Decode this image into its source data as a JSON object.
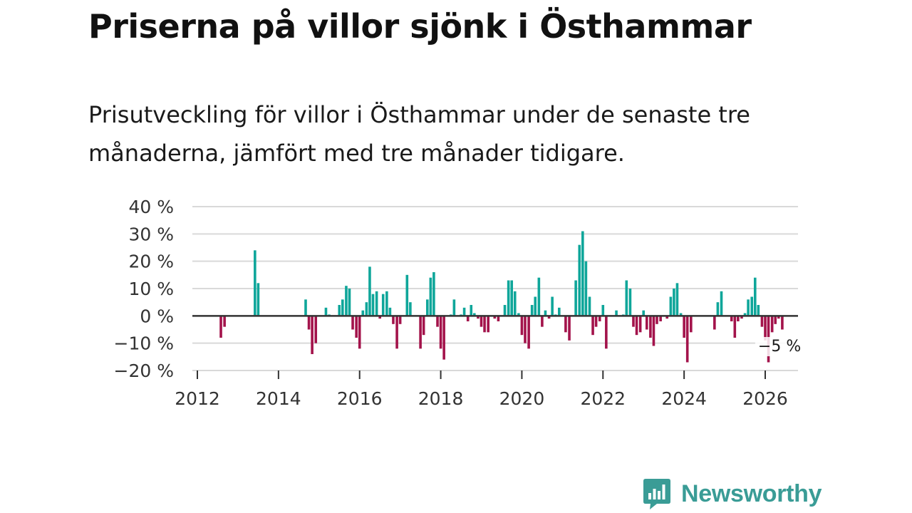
{
  "title": "Priserna på villor sjönk i Östhammar",
  "subtitle": "Prisutveckling för villor i Östhammar under de senaste tre månaderna, jämfört med tre månader tidigare.",
  "brand": {
    "name": "Newsworthy",
    "icon": "newsworthy-logo-icon",
    "color": "#3a9c96"
  },
  "colors": {
    "positive": "#0fa69a",
    "negative": "#a3134b",
    "grid": "#d9d9d9",
    "zero": "#333333"
  },
  "chart_data": {
    "type": "bar",
    "ylabel": "",
    "xlabel": "",
    "ylim": [
      -20,
      40
    ],
    "xlim": [
      2012,
      2026.8
    ],
    "y_ticks": [
      40,
      30,
      20,
      10,
      0,
      -10,
      -20
    ],
    "y_tick_labels": [
      "40 %",
      "30 %",
      "20 %",
      "10 %",
      "0 %",
      "−10 %",
      "−20 %"
    ],
    "x_ticks": [
      2012,
      2014,
      2016,
      2018,
      2020,
      2022,
      2024,
      2026
    ],
    "x_tick_labels": [
      "2012",
      "2014",
      "2016",
      "2018",
      "2020",
      "2022",
      "2024",
      "2026"
    ],
    "last_label": "−5 %",
    "series": [
      {
        "name": "Prisutveckling",
        "points": [
          {
            "x": 2012.58,
            "y": -8
          },
          {
            "x": 2012.67,
            "y": -4
          },
          {
            "x": 2013.42,
            "y": 24
          },
          {
            "x": 2013.5,
            "y": 12
          },
          {
            "x": 2014.67,
            "y": 6
          },
          {
            "x": 2014.75,
            "y": -5
          },
          {
            "x": 2014.83,
            "y": -14
          },
          {
            "x": 2014.92,
            "y": -10
          },
          {
            "x": 2015.17,
            "y": 3
          },
          {
            "x": 2015.25,
            "y": 0.5
          },
          {
            "x": 2015.5,
            "y": 4
          },
          {
            "x": 2015.58,
            "y": 6
          },
          {
            "x": 2015.67,
            "y": 11
          },
          {
            "x": 2015.75,
            "y": 10
          },
          {
            "x": 2015.83,
            "y": -5
          },
          {
            "x": 2015.92,
            "y": -8
          },
          {
            "x": 2016.0,
            "y": -12
          },
          {
            "x": 2016.08,
            "y": 2
          },
          {
            "x": 2016.17,
            "y": 5
          },
          {
            "x": 2016.25,
            "y": 18
          },
          {
            "x": 2016.33,
            "y": 8
          },
          {
            "x": 2016.42,
            "y": 9
          },
          {
            "x": 2016.5,
            "y": -1
          },
          {
            "x": 2016.58,
            "y": 8
          },
          {
            "x": 2016.67,
            "y": 9
          },
          {
            "x": 2016.75,
            "y": 3
          },
          {
            "x": 2016.83,
            "y": -3
          },
          {
            "x": 2016.92,
            "y": -12
          },
          {
            "x": 2017.0,
            "y": -3
          },
          {
            "x": 2017.17,
            "y": 15
          },
          {
            "x": 2017.25,
            "y": 5
          },
          {
            "x": 2017.5,
            "y": -12
          },
          {
            "x": 2017.58,
            "y": -7
          },
          {
            "x": 2017.67,
            "y": 6
          },
          {
            "x": 2017.75,
            "y": 14
          },
          {
            "x": 2017.83,
            "y": 16
          },
          {
            "x": 2017.92,
            "y": -4
          },
          {
            "x": 2018.0,
            "y": -12
          },
          {
            "x": 2018.08,
            "y": -16
          },
          {
            "x": 2018.25,
            "y": 0.5
          },
          {
            "x": 2018.33,
            "y": 6
          },
          {
            "x": 2018.5,
            "y": 0.5
          },
          {
            "x": 2018.58,
            "y": 3
          },
          {
            "x": 2018.67,
            "y": -2
          },
          {
            "x": 2018.75,
            "y": 4
          },
          {
            "x": 2018.83,
            "y": 1
          },
          {
            "x": 2018.92,
            "y": -1
          },
          {
            "x": 2019.0,
            "y": -4
          },
          {
            "x": 2019.08,
            "y": -6
          },
          {
            "x": 2019.17,
            "y": -6
          },
          {
            "x": 2019.33,
            "y": -1
          },
          {
            "x": 2019.42,
            "y": -2
          },
          {
            "x": 2019.58,
            "y": 4
          },
          {
            "x": 2019.67,
            "y": 13
          },
          {
            "x": 2019.75,
            "y": 13
          },
          {
            "x": 2019.83,
            "y": 9
          },
          {
            "x": 2019.92,
            "y": 1
          },
          {
            "x": 2020.0,
            "y": -7
          },
          {
            "x": 2020.08,
            "y": -10
          },
          {
            "x": 2020.17,
            "y": -12
          },
          {
            "x": 2020.25,
            "y": 4
          },
          {
            "x": 2020.33,
            "y": 7
          },
          {
            "x": 2020.42,
            "y": 14
          },
          {
            "x": 2020.5,
            "y": -4
          },
          {
            "x": 2020.58,
            "y": 2
          },
          {
            "x": 2020.67,
            "y": -1
          },
          {
            "x": 2020.75,
            "y": 7
          },
          {
            "x": 2020.83,
            "y": 0.5
          },
          {
            "x": 2020.92,
            "y": 3
          },
          {
            "x": 2021.08,
            "y": -6
          },
          {
            "x": 2021.17,
            "y": -9
          },
          {
            "x": 2021.33,
            "y": 13
          },
          {
            "x": 2021.42,
            "y": 26
          },
          {
            "x": 2021.5,
            "y": 31
          },
          {
            "x": 2021.58,
            "y": 20
          },
          {
            "x": 2021.67,
            "y": 7
          },
          {
            "x": 2021.75,
            "y": -7
          },
          {
            "x": 2021.83,
            "y": -4
          },
          {
            "x": 2021.92,
            "y": -2
          },
          {
            "x": 2022.0,
            "y": 4
          },
          {
            "x": 2022.08,
            "y": -12
          },
          {
            "x": 2022.33,
            "y": 2
          },
          {
            "x": 2022.5,
            "y": 0.5
          },
          {
            "x": 2022.58,
            "y": 13
          },
          {
            "x": 2022.67,
            "y": 10
          },
          {
            "x": 2022.75,
            "y": -4
          },
          {
            "x": 2022.83,
            "y": -7
          },
          {
            "x": 2022.92,
            "y": -6
          },
          {
            "x": 2023.0,
            "y": 2
          },
          {
            "x": 2023.08,
            "y": -5
          },
          {
            "x": 2023.17,
            "y": -8
          },
          {
            "x": 2023.25,
            "y": -11
          },
          {
            "x": 2023.33,
            "y": -3
          },
          {
            "x": 2023.42,
            "y": -2
          },
          {
            "x": 2023.58,
            "y": -1
          },
          {
            "x": 2023.67,
            "y": 7
          },
          {
            "x": 2023.75,
            "y": 10
          },
          {
            "x": 2023.83,
            "y": 12
          },
          {
            "x": 2023.92,
            "y": 1
          },
          {
            "x": 2024.0,
            "y": -8
          },
          {
            "x": 2024.08,
            "y": -17
          },
          {
            "x": 2024.17,
            "y": -6
          },
          {
            "x": 2024.75,
            "y": -5
          },
          {
            "x": 2024.83,
            "y": 5
          },
          {
            "x": 2024.92,
            "y": 9
          },
          {
            "x": 2025.17,
            "y": -2
          },
          {
            "x": 2025.25,
            "y": -8
          },
          {
            "x": 2025.33,
            "y": -2
          },
          {
            "x": 2025.42,
            "y": -1
          },
          {
            "x": 2025.5,
            "y": 1
          },
          {
            "x": 2025.58,
            "y": 6
          },
          {
            "x": 2025.67,
            "y": 7
          },
          {
            "x": 2025.75,
            "y": 14
          },
          {
            "x": 2025.83,
            "y": 4
          },
          {
            "x": 2025.92,
            "y": -4
          },
          {
            "x": 2026.0,
            "y": -9
          },
          {
            "x": 2026.08,
            "y": -17
          },
          {
            "x": 2026.17,
            "y": -6
          },
          {
            "x": 2026.25,
            "y": -3
          },
          {
            "x": 2026.33,
            "y": -1
          },
          {
            "x": 2026.42,
            "y": -5
          }
        ]
      }
    ]
  }
}
